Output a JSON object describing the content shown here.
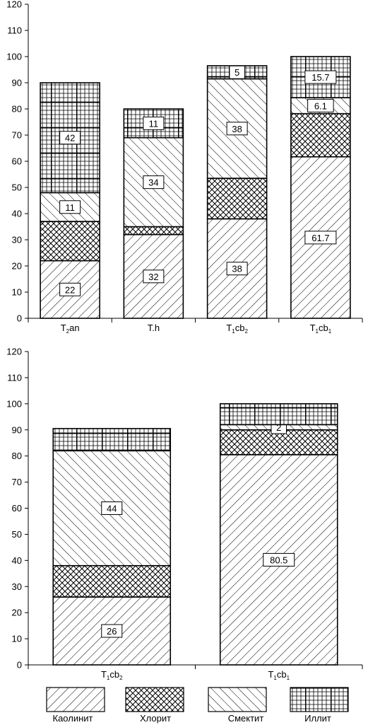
{
  "chart_data": [
    {
      "type": "bar",
      "stacked": true,
      "ylim": [
        0,
        120
      ],
      "yticks": [
        0,
        10,
        20,
        30,
        40,
        50,
        60,
        70,
        80,
        90,
        100,
        110,
        120
      ],
      "categories": [
        {
          "base": "T",
          "sub": "2",
          "rest": "an"
        },
        {
          "base": "T",
          "sub": "",
          "rest": "h"
        },
        {
          "base": "T",
          "sub": "1",
          "rest": "cb",
          "sub2": "2"
        },
        {
          "base": "T",
          "sub": "1",
          "rest": "cb",
          "sub2": "1"
        }
      ],
      "series": [
        {
          "name": "Каолинит",
          "values": [
            22,
            32,
            38,
            61.7
          ],
          "labels": [
            "22",
            "32",
            "38",
            "61.7"
          ]
        },
        {
          "name": "Хлорит",
          "values": [
            15,
            3,
            15.5,
            16.5
          ],
          "labels": [
            "",
            "",
            "",
            ""
          ]
        },
        {
          "name": "Смектит",
          "values": [
            11,
            34,
            38,
            6.1
          ],
          "labels": [
            "11",
            "34",
            "38",
            "6.1"
          ]
        },
        {
          "name": "Иллит",
          "values": [
            42,
            11,
            5,
            15.7
          ],
          "labels": [
            "42",
            "11",
            "5",
            "15.7"
          ]
        }
      ]
    },
    {
      "type": "bar",
      "stacked": true,
      "ylim": [
        0,
        120
      ],
      "yticks": [
        0,
        10,
        20,
        30,
        40,
        50,
        60,
        70,
        80,
        90,
        100,
        110,
        120
      ],
      "categories": [
        {
          "base": "T",
          "sub": "1",
          "rest": "cb",
          "sub2": "2"
        },
        {
          "base": "T",
          "sub": "1",
          "rest": "cb",
          "sub2": "1"
        }
      ],
      "series": [
        {
          "name": "Каолинит",
          "values": [
            26,
            80.5
          ],
          "labels": [
            "26",
            "80.5"
          ]
        },
        {
          "name": "Хлорит",
          "values": [
            12,
            9.5
          ],
          "labels": [
            "",
            ""
          ]
        },
        {
          "name": "Смектит",
          "values": [
            44,
            2
          ],
          "labels": [
            "44",
            "2"
          ]
        },
        {
          "name": "Иллит",
          "values": [
            8.5,
            8
          ],
          "labels": [
            "",
            ""
          ]
        }
      ]
    }
  ],
  "legend": {
    "items": [
      {
        "name": "Каолинит",
        "pattern": "kaolinite"
      },
      {
        "name": "Хлорит",
        "pattern": "chlorite"
      },
      {
        "name": "Смектит",
        "pattern": "smectite"
      },
      {
        "name": "Иллит",
        "pattern": "illite"
      }
    ]
  }
}
